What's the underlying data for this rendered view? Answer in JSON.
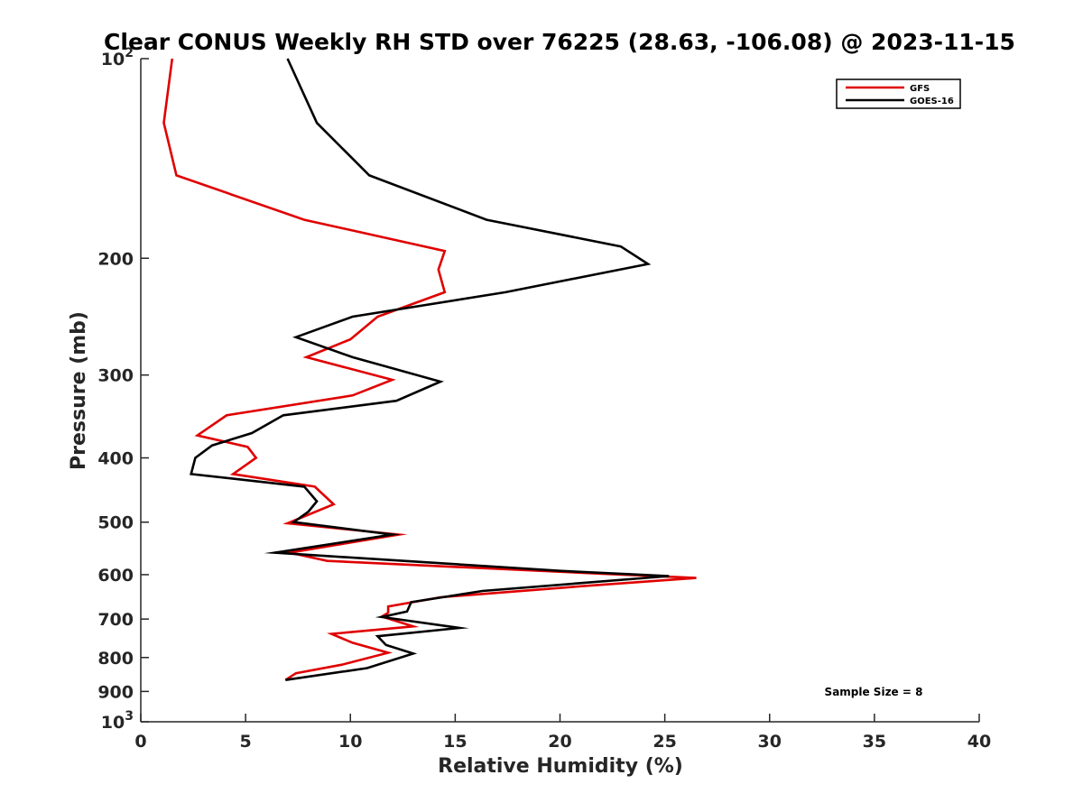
{
  "chart_data": {
    "type": "line",
    "title": "Clear CONUS Weekly RH STD over 76225 (28.63, -106.08) @ 2023-11-15",
    "xlabel": "Relative Humidity (%)",
    "ylabel": "Pressure (mb)",
    "xlim": [
      0,
      40
    ],
    "ylim": [
      100,
      1000
    ],
    "y_scale": "log",
    "y_reversed": true,
    "x_ticks": [
      "0",
      "5",
      "10",
      "15",
      "20",
      "25",
      "30",
      "35",
      "40"
    ],
    "x_tick_values": [
      0,
      5,
      10,
      15,
      20,
      25,
      30,
      35,
      40
    ],
    "y_ticks": [
      {
        "value": 100,
        "base": "10",
        "exp": "2"
      },
      {
        "value": 200,
        "label": "200"
      },
      {
        "value": 300,
        "label": "300"
      },
      {
        "value": 400,
        "label": "400"
      },
      {
        "value": 500,
        "label": "500"
      },
      {
        "value": 600,
        "label": "600"
      },
      {
        "value": 700,
        "label": "700"
      },
      {
        "value": 800,
        "label": "800"
      },
      {
        "value": 900,
        "label": "900"
      },
      {
        "value": 1000,
        "base": "10",
        "exp": "3"
      }
    ],
    "legend_position": "top-right",
    "annotation": "Sample Size = 8",
    "series": [
      {
        "name": "GFS",
        "color": "#e00000",
        "points": [
          [
            1.5,
            100
          ],
          [
            1.1,
            125
          ],
          [
            1.7,
            150
          ],
          [
            7.8,
            175
          ],
          [
            14.5,
            195
          ],
          [
            14.2,
            208
          ],
          [
            14.5,
            225
          ],
          [
            11.3,
            245
          ],
          [
            10.0,
            265
          ],
          [
            7.9,
            282
          ],
          [
            12.0,
            305
          ],
          [
            10.1,
            322
          ],
          [
            4.1,
            345
          ],
          [
            2.7,
            370
          ],
          [
            5.1,
            385
          ],
          [
            5.5,
            400
          ],
          [
            4.4,
            423
          ],
          [
            8.3,
            442
          ],
          [
            9.2,
            470
          ],
          [
            7.0,
            502
          ],
          [
            12.3,
            522
          ],
          [
            7.1,
            556
          ],
          [
            8.9,
            572
          ],
          [
            22.0,
            598
          ],
          [
            26.5,
            607
          ],
          [
            21.5,
            623
          ],
          [
            14.3,
            649
          ],
          [
            11.8,
            670
          ],
          [
            11.8,
            685
          ],
          [
            11.5,
            694
          ],
          [
            13.0,
            718
          ],
          [
            9.1,
            737
          ],
          [
            10.1,
            760
          ],
          [
            11.8,
            787
          ],
          [
            9.6,
            820
          ],
          [
            7.4,
            845
          ],
          [
            6.9,
            865
          ]
        ]
      },
      {
        "name": "GOES-16",
        "color": "#000000",
        "points": [
          [
            7.0,
            100
          ],
          [
            8.4,
            125
          ],
          [
            10.9,
            150
          ],
          [
            16.5,
            175
          ],
          [
            22.9,
            192
          ],
          [
            24.2,
            204
          ],
          [
            17.4,
            225
          ],
          [
            10.1,
            245
          ],
          [
            7.4,
            263
          ],
          [
            10.1,
            282
          ],
          [
            14.3,
            307
          ],
          [
            12.2,
            328
          ],
          [
            6.8,
            345
          ],
          [
            5.3,
            367
          ],
          [
            3.4,
            383
          ],
          [
            2.6,
            400
          ],
          [
            2.4,
            423
          ],
          [
            7.8,
            442
          ],
          [
            8.4,
            465
          ],
          [
            8.0,
            482
          ],
          [
            7.3,
            500
          ],
          [
            12.0,
            522
          ],
          [
            6.4,
            556
          ],
          [
            20.0,
            592
          ],
          [
            25.2,
            603
          ],
          [
            16.3,
            635
          ],
          [
            12.9,
            660
          ],
          [
            12.7,
            682
          ],
          [
            11.5,
            695
          ],
          [
            15.2,
            722
          ],
          [
            11.3,
            743
          ],
          [
            11.7,
            766
          ],
          [
            13.0,
            789
          ],
          [
            10.8,
            830
          ],
          [
            6.9,
            865
          ]
        ]
      }
    ]
  }
}
